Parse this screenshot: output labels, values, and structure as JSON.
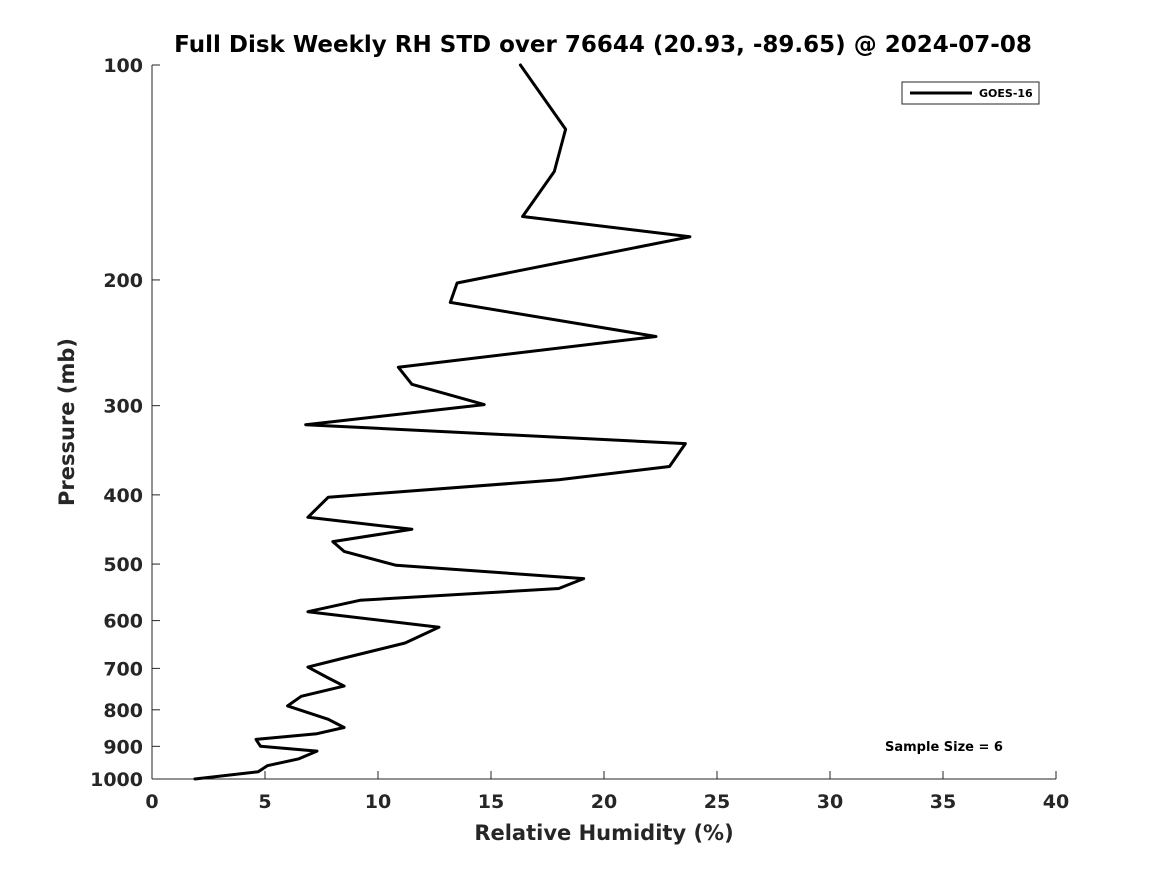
{
  "chart_data": {
    "type": "line",
    "title": "Full Disk Weekly RH STD over 76644 (20.93, -89.65) @ 2024-07-08",
    "xlabel": "Relative Humidity (%)",
    "ylabel": "Pressure (mb)",
    "xlim": [
      0,
      40
    ],
    "ylim": [
      100,
      1000
    ],
    "y_scale": "log",
    "y_reversed": true,
    "xticks": [
      0,
      5,
      10,
      15,
      20,
      25,
      30,
      35,
      40
    ],
    "yticks": [
      100,
      200,
      300,
      400,
      500,
      600,
      700,
      800,
      900,
      1000
    ],
    "grid": false,
    "legend_position": "top-right",
    "annotation": "Sample Size = 6",
    "series": [
      {
        "name": "GOES-16",
        "color": "#000000",
        "x": [
          16.3,
          18.3,
          17.8,
          16.4,
          23.8,
          13.5,
          13.2,
          22.3,
          10.9,
          11.5,
          14.7,
          6.8,
          23.6,
          22.9,
          18.0,
          7.8,
          6.9,
          11.5,
          8.0,
          8.5,
          10.8,
          19.1,
          18.0,
          9.2,
          6.9,
          12.7,
          11.2,
          8.5,
          6.9,
          7.8,
          8.5,
          6.6,
          6.0,
          7.8,
          8.5,
          7.3,
          4.6,
          4.8,
          7.3,
          6.5,
          5.1,
          4.7,
          1.9
        ],
        "y": [
          100,
          123,
          141,
          163,
          174,
          202,
          215,
          240,
          265,
          280,
          299,
          319,
          339,
          365,
          381,
          403,
          430,
          447,
          465,
          480,
          502,
          524,
          541,
          562,
          583,
          613,
          645,
          677,
          697,
          722,
          741,
          766,
          790,
          825,
          847,
          864,
          880,
          900,
          914,
          937,
          958,
          977,
          1000
        ]
      }
    ]
  }
}
